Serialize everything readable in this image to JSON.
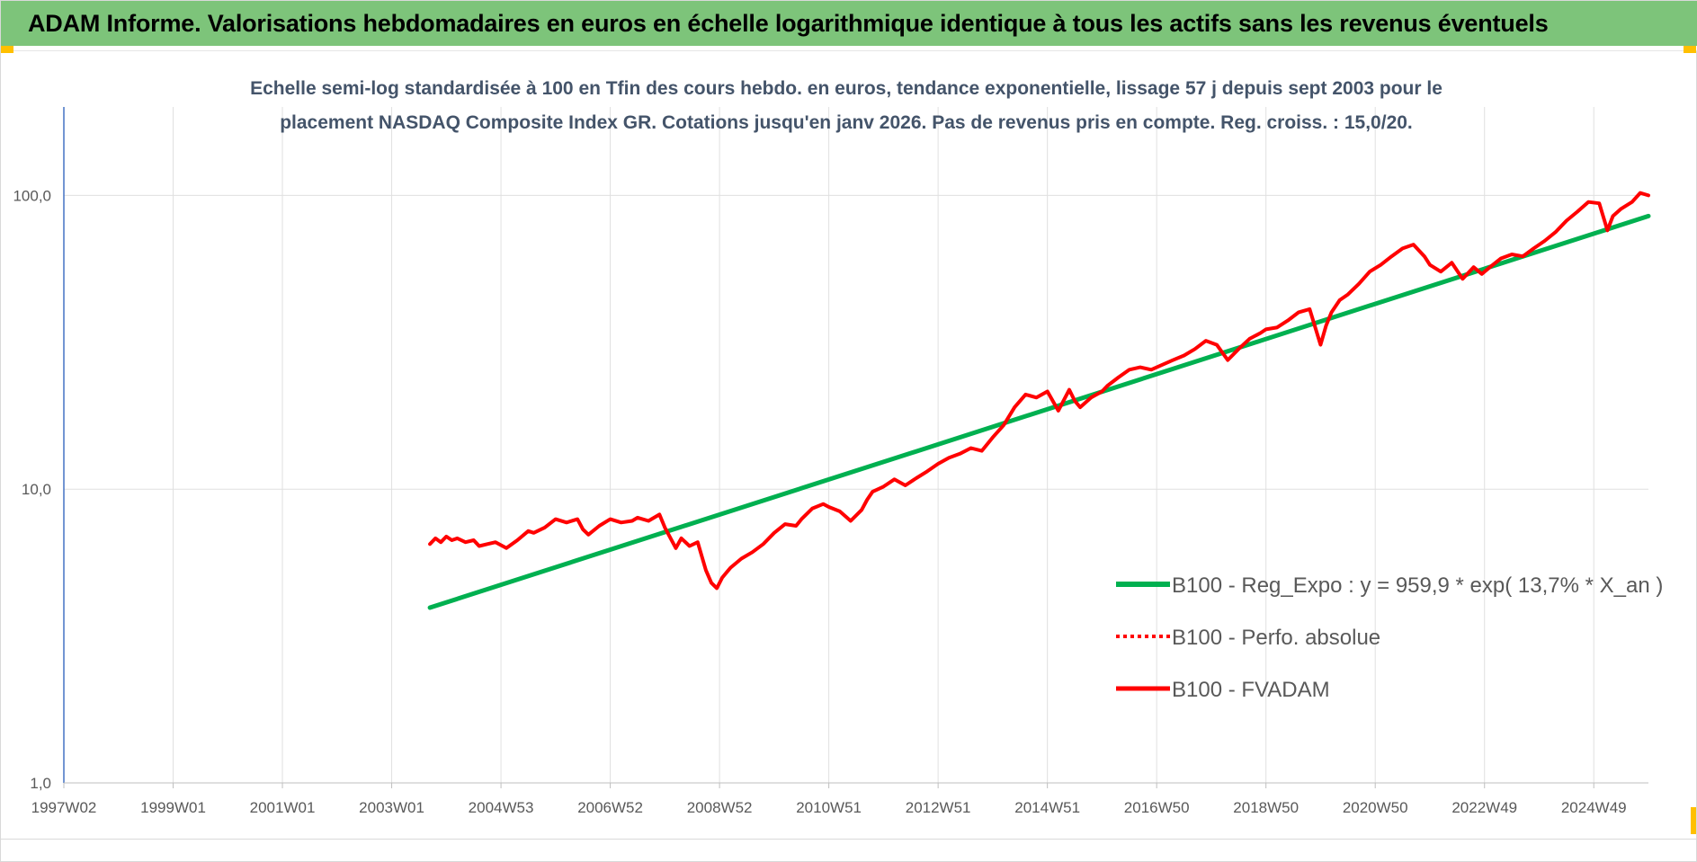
{
  "banner": {
    "title": "ADAM Informe. Valorisations hebdomadaires en euros en échelle logarithmique identique à tous les actifs sans les revenus éventuels"
  },
  "colors": {
    "banner_bg": "#7dc47a",
    "trend_line": "#00b050",
    "price_line": "#ff0000",
    "axis_line": "#4472c4",
    "grid": "#e0e0e0",
    "title_text": "#44546a",
    "accent_corner": "#ffc000"
  },
  "chart_data": {
    "type": "line",
    "title_line1": "Echelle semi-log standardisée à 100 en Tfin des cours hebdo. en euros, tendance exponentielle, lissage 57 j depuis sept 2003  pour le",
    "title_line2": "placement NASDAQ Composite Index GR. Cotations jusqu'en janv 2026. Pas de revenus pris en compte. Reg. croiss. : 15,0/20.",
    "y_scale": "log",
    "ylim": [
      1,
      200
    ],
    "y_ticks": [
      1,
      10,
      100
    ],
    "y_tick_labels": [
      "1,0",
      "10,0",
      "100,0"
    ],
    "xlim": [
      1997.0,
      2026.0
    ],
    "x_ticks": [
      1997.0,
      1999.0,
      2001.0,
      2003.0,
      2005.0,
      2007.0,
      2009.0,
      2011.0,
      2013.0,
      2015.0,
      2017.0,
      2019.0,
      2021.0,
      2023.0,
      2025.0
    ],
    "x_tick_labels": [
      "1997W02",
      "1999W01",
      "2001W01",
      "2003W01",
      "2004W53",
      "2006W52",
      "2008W52",
      "2010W51",
      "2012W51",
      "2014W51",
      "2016W50",
      "2018W50",
      "2020W50",
      "2022W49",
      "2024W49"
    ],
    "vertical_grid": true,
    "horizontal_grid": true,
    "legend_position": "right-middle",
    "series": [
      {
        "name": "B100 - Reg_Expo : y = 959,9 * exp( 13,7% *  X_an )",
        "style": "solid",
        "color": "#00b050",
        "x": [
          2003.7,
          2026.0
        ],
        "values": [
          3.95,
          85.0
        ]
      },
      {
        "name": "B100 - Perfo. absolue",
        "style": "dotted",
        "color": "#ff0000",
        "x": [],
        "values": []
      },
      {
        "name": "B100 - FVADAM",
        "style": "solid",
        "color": "#ff0000",
        "x": [
          2003.7,
          2003.8,
          2003.9,
          2004.0,
          2004.1,
          2004.2,
          2004.35,
          2004.5,
          2004.6,
          2004.75,
          2004.9,
          2005.1,
          2005.3,
          2005.5,
          2005.6,
          2005.8,
          2006.0,
          2006.2,
          2006.4,
          2006.5,
          2006.6,
          2006.8,
          2007.0,
          2007.2,
          2007.4,
          2007.5,
          2007.7,
          2007.9,
          2008.0,
          2008.2,
          2008.3,
          2008.45,
          2008.6,
          2008.75,
          2008.85,
          2008.95,
          2009.05,
          2009.2,
          2009.4,
          2009.6,
          2009.8,
          2010.0,
          2010.2,
          2010.4,
          2010.5,
          2010.7,
          2010.9,
          2011.0,
          2011.2,
          2011.4,
          2011.6,
          2011.7,
          2011.8,
          2012.0,
          2012.2,
          2012.4,
          2012.6,
          2012.8,
          2013.0,
          2013.2,
          2013.4,
          2013.6,
          2013.8,
          2014.0,
          2014.2,
          2014.4,
          2014.6,
          2014.8,
          2015.0,
          2015.2,
          2015.4,
          2015.5,
          2015.6,
          2015.8,
          2016.0,
          2016.1,
          2016.3,
          2016.5,
          2016.7,
          2016.9,
          2017.1,
          2017.3,
          2017.5,
          2017.7,
          2017.9,
          2018.1,
          2018.3,
          2018.5,
          2018.7,
          2018.9,
          2019.0,
          2019.2,
          2019.4,
          2019.6,
          2019.8,
          2020.0,
          2020.1,
          2020.2,
          2020.35,
          2020.5,
          2020.7,
          2020.9,
          2021.1,
          2021.3,
          2021.5,
          2021.7,
          2021.9,
          2022.0,
          2022.2,
          2022.4,
          2022.6,
          2022.8,
          2022.95,
          2023.1,
          2023.3,
          2023.5,
          2023.7,
          2023.9,
          2024.1,
          2024.3,
          2024.5,
          2024.7,
          2024.9,
          2025.1,
          2025.25,
          2025.35,
          2025.5,
          2025.7,
          2025.85,
          2026.0
        ],
        "values": [
          6.5,
          6.8,
          6.6,
          6.9,
          6.7,
          6.8,
          6.6,
          6.7,
          6.4,
          6.5,
          6.6,
          6.3,
          6.7,
          7.2,
          7.1,
          7.4,
          7.9,
          7.7,
          7.9,
          7.3,
          7.0,
          7.5,
          7.9,
          7.7,
          7.8,
          8.0,
          7.8,
          8.2,
          7.4,
          6.3,
          6.8,
          6.4,
          6.6,
          5.3,
          4.8,
          4.6,
          5.0,
          5.4,
          5.8,
          6.1,
          6.5,
          7.1,
          7.6,
          7.5,
          7.9,
          8.6,
          8.9,
          8.7,
          8.4,
          7.8,
          8.5,
          9.2,
          9.8,
          10.2,
          10.8,
          10.3,
          10.9,
          11.5,
          12.2,
          12.8,
          13.2,
          13.8,
          13.5,
          15.0,
          16.5,
          19.0,
          21.0,
          20.5,
          21.5,
          18.5,
          21.8,
          20.0,
          19.0,
          20.5,
          21.5,
          22.5,
          24.0,
          25.5,
          26.0,
          25.5,
          26.5,
          27.5,
          28.5,
          30.0,
          32.0,
          31.0,
          27.5,
          30.0,
          32.5,
          34.0,
          35.0,
          35.5,
          37.5,
          40.0,
          41.0,
          31.0,
          36.0,
          40.0,
          44.0,
          46.0,
          50.0,
          55.0,
          58.0,
          62.0,
          66.0,
          68.0,
          62.0,
          58.0,
          55.0,
          59.0,
          52.0,
          57.0,
          54.0,
          57.0,
          61.0,
          63.0,
          62.0,
          66.0,
          70.0,
          75.0,
          82.0,
          88.0,
          95.0,
          94.0,
          76.0,
          85.0,
          90.0,
          95.0,
          102.0,
          100.0
        ]
      }
    ]
  }
}
